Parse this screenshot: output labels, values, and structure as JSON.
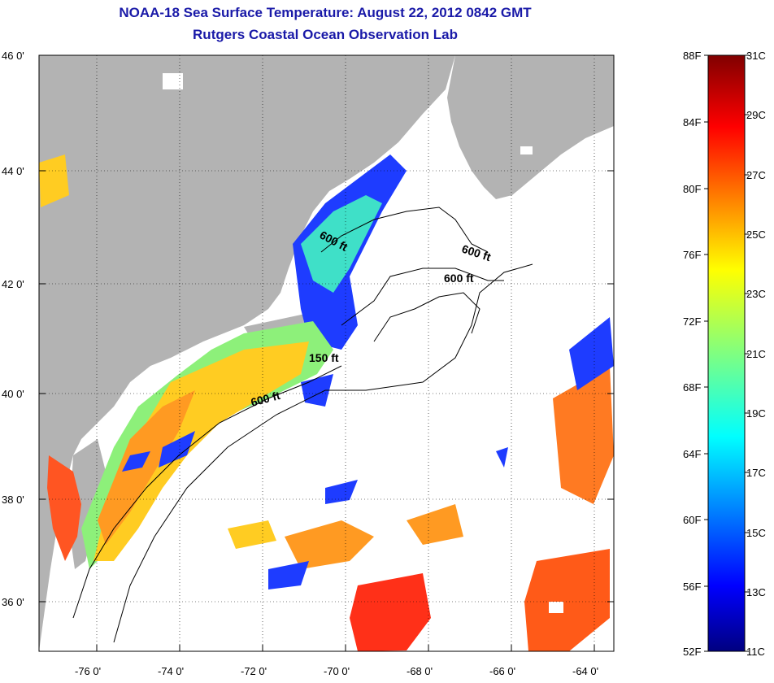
{
  "title": "NOAA-18 Sea Surface Temperature:  August 22, 2012 0842 GMT",
  "subtitle": "Rutgers Coastal Ocean Observation Lab",
  "lat_ticks": [
    "46 0'",
    "44 0'",
    "42 0'",
    "40 0'",
    "38 0'",
    "36 0'"
  ],
  "lon_ticks": [
    "-76 0'",
    "-74 0'",
    "-72 0'",
    "-70 0'",
    "-68 0'",
    "-66 0'",
    "-64 0'"
  ],
  "contour_labels": [
    "600 ft",
    "600 ft",
    "600 ft",
    "150 ft",
    "600 ft"
  ],
  "colorbar": {
    "fahrenheit": [
      "88F",
      "84F",
      "80F",
      "76F",
      "72F",
      "68F",
      "64F",
      "60F",
      "56F",
      "52F"
    ],
    "celsius": [
      "31C",
      "29C",
      "27C",
      "25C",
      "23C",
      "21C",
      "19C",
      "17C",
      "15C",
      "13C",
      "11C"
    ]
  },
  "colors": {
    "land": "#b3b3b3",
    "title": "#1a1aa8",
    "cold": "#000080",
    "warm": "#800000"
  }
}
